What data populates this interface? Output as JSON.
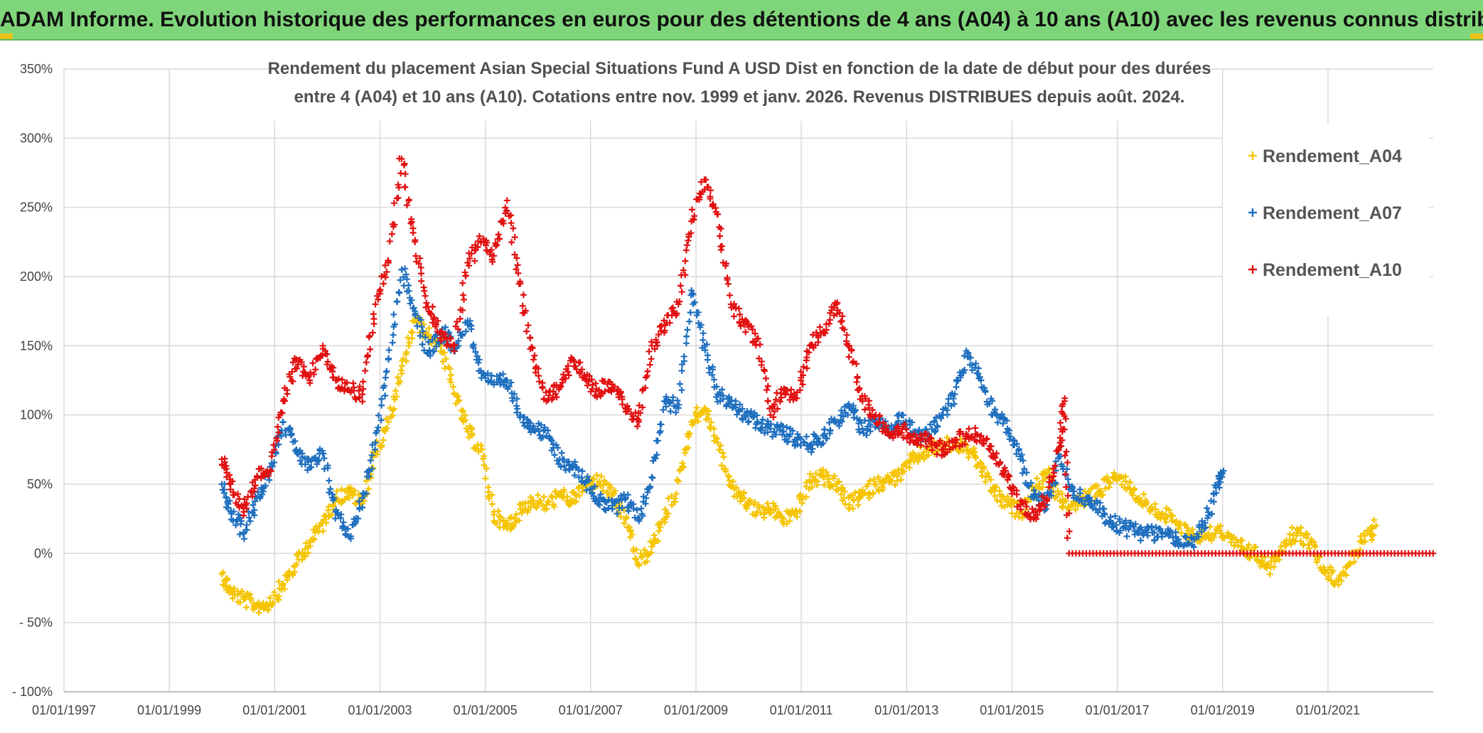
{
  "header": {
    "title": "ADAM Informe. Evolution historique des performances en euros pour des détentions de 4 ans (A04) à 10 ans (A10) avec les revenus connus distribués"
  },
  "chart_data": {
    "type": "scatter",
    "title_lines": [
      "Rendement du placement Asian Special Situations Fund A USD Dist en fonction de la date de début pour des durées",
      "entre 4 (A04) et 10 ans (A10). Cotations entre nov. 1999 et janv. 2026. Revenus DISTRIBUES depuis août. 2024."
    ],
    "xlabel": "",
    "ylabel": "",
    "x_ticks": [
      "01/01/1997",
      "01/01/1999",
      "01/01/2001",
      "01/01/2003",
      "01/01/2005",
      "01/01/2007",
      "01/01/2009",
      "01/01/2011",
      "01/01/2013",
      "01/01/2015",
      "01/01/2017",
      "01/01/2019",
      "01/01/2021"
    ],
    "y_ticks": [
      "350%",
      "300%",
      "250%",
      "200%",
      "150%",
      "100%",
      "50%",
      "0%",
      "- 50%",
      "- 100%"
    ],
    "xlim": [
      "1997-01-01",
      "2023-01-01"
    ],
    "ylim": [
      -100,
      350
    ],
    "grid": true,
    "legend_position": "top-right",
    "marker": "+",
    "series": [
      {
        "name": "Rendement_A04",
        "color": "#f5c400",
        "points": [
          [
            "2000-01-01",
            -15
          ],
          [
            "2000-03-01",
            -28
          ],
          [
            "2000-06-01",
            -33
          ],
          [
            "2000-09-01",
            -38
          ],
          [
            "2000-12-01",
            -36
          ],
          [
            "2001-03-01",
            -22
          ],
          [
            "2001-06-01",
            -8
          ],
          [
            "2001-09-01",
            8
          ],
          [
            "2001-12-01",
            22
          ],
          [
            "2002-03-01",
            40
          ],
          [
            "2002-06-01",
            44
          ],
          [
            "2002-09-01",
            36
          ],
          [
            "2002-12-01",
            72
          ],
          [
            "2003-03-01",
            95
          ],
          [
            "2003-06-01",
            130
          ],
          [
            "2003-09-01",
            168
          ],
          [
            "2003-12-01",
            158
          ],
          [
            "2004-03-01",
            150
          ],
          [
            "2004-06-01",
            115
          ],
          [
            "2004-09-01",
            88
          ],
          [
            "2004-12-01",
            75
          ],
          [
            "2005-03-01",
            28
          ],
          [
            "2005-06-01",
            18
          ],
          [
            "2005-09-01",
            32
          ],
          [
            "2005-12-01",
            38
          ],
          [
            "2006-03-01",
            35
          ],
          [
            "2006-06-01",
            42
          ],
          [
            "2006-09-01",
            38
          ],
          [
            "2006-12-01",
            50
          ],
          [
            "2007-03-01",
            52
          ],
          [
            "2007-06-01",
            42
          ],
          [
            "2007-09-01",
            25
          ],
          [
            "2007-12-01",
            -8
          ],
          [
            "2008-03-01",
            5
          ],
          [
            "2008-06-01",
            25
          ],
          [
            "2008-09-01",
            52
          ],
          [
            "2008-12-01",
            95
          ],
          [
            "2009-03-01",
            105
          ],
          [
            "2009-06-01",
            80
          ],
          [
            "2009-09-01",
            48
          ],
          [
            "2009-12-01",
            40
          ],
          [
            "2010-03-01",
            30
          ],
          [
            "2010-06-01",
            32
          ],
          [
            "2010-09-01",
            25
          ],
          [
            "2010-12-01",
            30
          ],
          [
            "2011-03-01",
            52
          ],
          [
            "2011-06-01",
            55
          ],
          [
            "2011-09-01",
            50
          ],
          [
            "2011-12-01",
            35
          ],
          [
            "2012-03-01",
            42
          ],
          [
            "2012-06-01",
            50
          ],
          [
            "2012-09-01",
            52
          ],
          [
            "2012-12-01",
            58
          ],
          [
            "2013-03-01",
            70
          ],
          [
            "2013-06-01",
            74
          ],
          [
            "2013-09-01",
            78
          ],
          [
            "2013-12-01",
            80
          ],
          [
            "2014-03-01",
            75
          ],
          [
            "2014-06-01",
            62
          ],
          [
            "2014-09-01",
            45
          ],
          [
            "2014-12-01",
            35
          ],
          [
            "2015-03-01",
            30
          ],
          [
            "2015-06-01",
            45
          ],
          [
            "2015-09-01",
            58
          ],
          [
            "2015-12-01",
            38
          ],
          [
            "2016-03-01",
            35
          ],
          [
            "2016-06-01",
            40
          ],
          [
            "2016-09-01",
            45
          ],
          [
            "2016-12-01",
            55
          ],
          [
            "2017-03-01",
            52
          ],
          [
            "2017-06-01",
            40
          ],
          [
            "2017-09-01",
            32
          ],
          [
            "2017-12-01",
            28
          ],
          [
            "2018-03-01",
            20
          ],
          [
            "2018-06-01",
            14
          ],
          [
            "2018-09-01",
            12
          ],
          [
            "2018-12-01",
            18
          ],
          [
            "2019-03-01",
            8
          ],
          [
            "2019-06-01",
            3
          ],
          [
            "2019-09-01",
            -2
          ],
          [
            "2019-12-01",
            -10
          ],
          [
            "2020-03-01",
            8
          ],
          [
            "2020-06-01",
            15
          ],
          [
            "2020-09-01",
            8
          ],
          [
            "2020-12-01",
            -10
          ],
          [
            "2021-03-01",
            -20
          ],
          [
            "2021-06-01",
            -8
          ],
          [
            "2021-09-01",
            8
          ],
          [
            "2021-12-01",
            20
          ]
        ]
      },
      {
        "name": "Rendement_A07",
        "color": "#1f6fbf",
        "points": [
          [
            "2000-01-01",
            50
          ],
          [
            "2000-03-01",
            30
          ],
          [
            "2000-06-01",
            15
          ],
          [
            "2000-09-01",
            40
          ],
          [
            "2000-12-01",
            60
          ],
          [
            "2001-03-01",
            95
          ],
          [
            "2001-06-01",
            75
          ],
          [
            "2001-09-01",
            62
          ],
          [
            "2001-12-01",
            72
          ],
          [
            "2002-03-01",
            30
          ],
          [
            "2002-06-01",
            12
          ],
          [
            "2002-09-01",
            40
          ],
          [
            "2002-12-01",
            80
          ],
          [
            "2003-03-01",
            140
          ],
          [
            "2003-06-01",
            205
          ],
          [
            "2003-09-01",
            175
          ],
          [
            "2003-12-01",
            145
          ],
          [
            "2004-03-01",
            160
          ],
          [
            "2004-06-01",
            150
          ],
          [
            "2004-09-01",
            168
          ],
          [
            "2004-12-01",
            132
          ],
          [
            "2005-03-01",
            122
          ],
          [
            "2005-06-01",
            125
          ],
          [
            "2005-09-01",
            100
          ],
          [
            "2005-12-01",
            92
          ],
          [
            "2006-03-01",
            85
          ],
          [
            "2006-06-01",
            68
          ],
          [
            "2006-09-01",
            62
          ],
          [
            "2006-12-01",
            52
          ],
          [
            "2007-03-01",
            40
          ],
          [
            "2007-06-01",
            32
          ],
          [
            "2007-09-01",
            40
          ],
          [
            "2007-12-01",
            25
          ],
          [
            "2008-03-01",
            55
          ],
          [
            "2008-06-01",
            110
          ],
          [
            "2008-09-01",
            105
          ],
          [
            "2008-12-01",
            190
          ],
          [
            "2009-03-01",
            150
          ],
          [
            "2009-06-01",
            115
          ],
          [
            "2009-09-01",
            110
          ],
          [
            "2009-12-01",
            100
          ],
          [
            "2010-03-01",
            95
          ],
          [
            "2010-06-01",
            90
          ],
          [
            "2010-09-01",
            88
          ],
          [
            "2010-12-01",
            82
          ],
          [
            "2011-03-01",
            78
          ],
          [
            "2011-06-01",
            85
          ],
          [
            "2011-09-01",
            95
          ],
          [
            "2011-12-01",
            105
          ],
          [
            "2012-03-01",
            90
          ],
          [
            "2012-06-01",
            95
          ],
          [
            "2012-09-01",
            88
          ],
          [
            "2012-12-01",
            100
          ],
          [
            "2013-03-01",
            88
          ],
          [
            "2013-06-01",
            85
          ],
          [
            "2013-09-01",
            100
          ],
          [
            "2013-12-01",
            115
          ],
          [
            "2014-03-01",
            145
          ],
          [
            "2014-06-01",
            125
          ],
          [
            "2014-09-01",
            102
          ],
          [
            "2014-12-01",
            90
          ],
          [
            "2015-03-01",
            70
          ],
          [
            "2015-06-01",
            40
          ],
          [
            "2015-09-01",
            35
          ],
          [
            "2015-12-01",
            70
          ],
          [
            "2016-03-01",
            42
          ],
          [
            "2016-06-01",
            40
          ],
          [
            "2016-09-01",
            32
          ],
          [
            "2016-12-01",
            22
          ],
          [
            "2017-03-01",
            18
          ],
          [
            "2017-06-01",
            15
          ],
          [
            "2017-09-01",
            15
          ],
          [
            "2017-12-01",
            14
          ],
          [
            "2018-03-01",
            10
          ],
          [
            "2018-06-01",
            6
          ],
          [
            "2018-09-01",
            22
          ],
          [
            "2018-12-01",
            50
          ],
          [
            "2019-01-01",
            58
          ]
        ]
      },
      {
        "name": "Rendement_A10",
        "color": "#e21010",
        "points": [
          [
            "2000-01-01",
            68
          ],
          [
            "2000-03-01",
            50
          ],
          [
            "2000-06-01",
            30
          ],
          [
            "2000-09-01",
            55
          ],
          [
            "2000-12-01",
            60
          ],
          [
            "2001-03-01",
            110
          ],
          [
            "2001-06-01",
            140
          ],
          [
            "2001-09-01",
            125
          ],
          [
            "2001-12-01",
            150
          ],
          [
            "2002-03-01",
            125
          ],
          [
            "2002-06-01",
            118
          ],
          [
            "2002-09-01",
            115
          ],
          [
            "2002-12-01",
            180
          ],
          [
            "2003-03-01",
            210
          ],
          [
            "2003-06-01",
            285
          ],
          [
            "2003-09-01",
            225
          ],
          [
            "2003-12-01",
            178
          ],
          [
            "2004-03-01",
            160
          ],
          [
            "2004-06-01",
            150
          ],
          [
            "2004-09-01",
            210
          ],
          [
            "2004-12-01",
            225
          ],
          [
            "2005-03-01",
            215
          ],
          [
            "2005-06-01",
            255
          ],
          [
            "2005-09-01",
            195
          ],
          [
            "2005-12-01",
            140
          ],
          [
            "2006-03-01",
            110
          ],
          [
            "2006-06-01",
            120
          ],
          [
            "2006-09-01",
            140
          ],
          [
            "2006-12-01",
            125
          ],
          [
            "2007-03-01",
            118
          ],
          [
            "2007-06-01",
            122
          ],
          [
            "2007-09-01",
            105
          ],
          [
            "2007-12-01",
            95
          ],
          [
            "2008-03-01",
            150
          ],
          [
            "2008-06-01",
            165
          ],
          [
            "2008-09-01",
            180
          ],
          [
            "2008-12-01",
            240
          ],
          [
            "2009-03-01",
            270
          ],
          [
            "2009-06-01",
            245
          ],
          [
            "2009-09-01",
            180
          ],
          [
            "2009-12-01",
            165
          ],
          [
            "2010-03-01",
            155
          ],
          [
            "2010-06-01",
            100
          ],
          [
            "2010-09-01",
            118
          ],
          [
            "2010-12-01",
            112
          ],
          [
            "2011-03-01",
            150
          ],
          [
            "2011-06-01",
            160
          ],
          [
            "2011-09-01",
            180
          ],
          [
            "2011-12-01",
            150
          ],
          [
            "2012-03-01",
            110
          ],
          [
            "2012-06-01",
            100
          ],
          [
            "2012-09-01",
            85
          ],
          [
            "2012-12-01",
            90
          ],
          [
            "2013-03-01",
            80
          ],
          [
            "2013-06-01",
            82
          ],
          [
            "2013-09-01",
            75
          ],
          [
            "2013-12-01",
            82
          ],
          [
            "2014-03-01",
            85
          ],
          [
            "2014-06-01",
            85
          ],
          [
            "2014-09-01",
            70
          ],
          [
            "2014-12-01",
            55
          ],
          [
            "2015-03-01",
            35
          ],
          [
            "2015-06-01",
            25
          ],
          [
            "2015-09-01",
            40
          ],
          [
            "2015-12-01",
            80
          ],
          [
            "2016-01-01",
            110
          ],
          [
            "2016-02-01",
            0
          ],
          [
            "2017-01-01",
            0
          ],
          [
            "2018-01-01",
            0
          ],
          [
            "2019-01-01",
            0
          ],
          [
            "2020-01-01",
            0
          ],
          [
            "2021-01-01",
            0
          ],
          [
            "2022-01-01",
            0
          ],
          [
            "2022-12-31",
            0
          ]
        ]
      }
    ]
  }
}
